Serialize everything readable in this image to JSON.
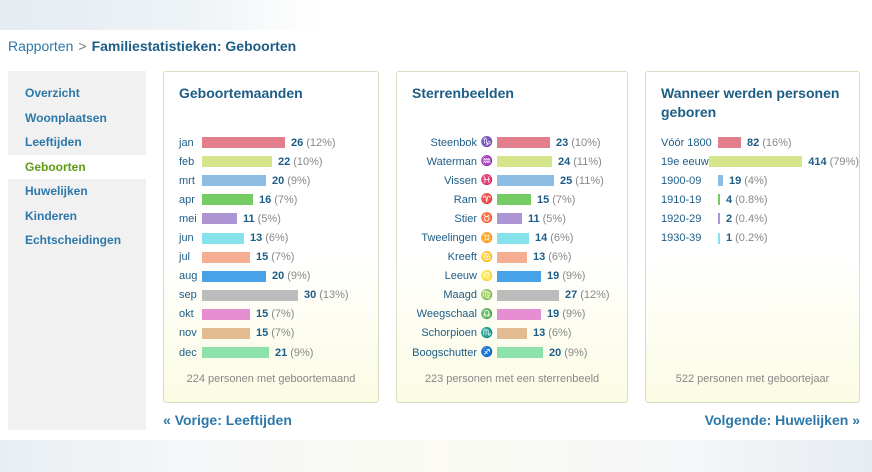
{
  "breadcrumb": {
    "root": "Rapporten",
    "separator": ">",
    "current": "Familiestatistieken: Geboorten"
  },
  "sidebar": {
    "items": [
      {
        "label": "Overzicht",
        "active": false
      },
      {
        "label": "Woonplaatsen",
        "active": false
      },
      {
        "label": "Leeftijden",
        "active": false
      },
      {
        "label": "Geboorten",
        "active": true
      },
      {
        "label": "Huwelijken",
        "active": false
      },
      {
        "label": "Kinderen",
        "active": false
      },
      {
        "label": "Echtscheidingen",
        "active": false
      }
    ]
  },
  "months": {
    "title": "Geboortemaanden",
    "footer": "224 personen met geboortemaand",
    "rows": [
      {
        "label": "jan",
        "value": 26,
        "pct": "(12%)",
        "color": "#e37f8d"
      },
      {
        "label": "feb",
        "value": 22,
        "pct": "(10%)",
        "color": "#d4e58a"
      },
      {
        "label": "mrt",
        "value": 20,
        "pct": "(9%)",
        "color": "#8dbde3"
      },
      {
        "label": "apr",
        "value": 16,
        "pct": "(7%)",
        "color": "#74cc63"
      },
      {
        "label": "mei",
        "value": 11,
        "pct": "(5%)",
        "color": "#ad94d2"
      },
      {
        "label": "jun",
        "value": 13,
        "pct": "(6%)",
        "color": "#86e2ea"
      },
      {
        "label": "jul",
        "value": 15,
        "pct": "(7%)",
        "color": "#f6ad91"
      },
      {
        "label": "aug",
        "value": 20,
        "pct": "(9%)",
        "color": "#47a2e8"
      },
      {
        "label": "sep",
        "value": 30,
        "pct": "(13%)",
        "color": "#bcbcbc"
      },
      {
        "label": "okt",
        "value": 15,
        "pct": "(7%)",
        "color": "#e68ed1"
      },
      {
        "label": "nov",
        "value": 15,
        "pct": "(7%)",
        "color": "#e2bb91"
      },
      {
        "label": "dec",
        "value": 21,
        "pct": "(9%)",
        "color": "#8de2ac"
      }
    ]
  },
  "zodiac": {
    "title": "Sterrenbeelden",
    "footer": "223 personen met een sterrenbeeld",
    "rows": [
      {
        "label": "Steenbok",
        "icon": "capricorn-icon",
        "value": 23,
        "pct": "(10%)",
        "color": "#e37f8d"
      },
      {
        "label": "Waterman",
        "icon": "aquarius-icon",
        "value": 24,
        "pct": "(11%)",
        "color": "#d4e58a"
      },
      {
        "label": "Vissen",
        "icon": "pisces-icon",
        "value": 25,
        "pct": "(11%)",
        "color": "#8dbde3"
      },
      {
        "label": "Ram",
        "icon": "aries-icon",
        "value": 15,
        "pct": "(7%)",
        "color": "#74cc63"
      },
      {
        "label": "Stier",
        "icon": "taurus-icon",
        "value": 11,
        "pct": "(5%)",
        "color": "#ad94d2"
      },
      {
        "label": "Tweelingen",
        "icon": "gemini-icon",
        "value": 14,
        "pct": "(6%)",
        "color": "#86e2ea"
      },
      {
        "label": "Kreeft",
        "icon": "cancer-icon",
        "value": 13,
        "pct": "(6%)",
        "color": "#f6ad91"
      },
      {
        "label": "Leeuw",
        "icon": "leo-icon",
        "value": 19,
        "pct": "(9%)",
        "color": "#47a2e8"
      },
      {
        "label": "Maagd",
        "icon": "virgo-icon",
        "value": 27,
        "pct": "(12%)",
        "color": "#bcbcbc"
      },
      {
        "label": "Weegschaal",
        "icon": "libra-icon",
        "value": 19,
        "pct": "(9%)",
        "color": "#e68ed1"
      },
      {
        "label": "Schorpioen",
        "icon": "scorpio-icon",
        "value": 13,
        "pct": "(6%)",
        "color": "#e2bb91"
      },
      {
        "label": "Boogschutter",
        "icon": "sagittarius-icon",
        "value": 20,
        "pct": "(9%)",
        "color": "#8de2ac"
      }
    ]
  },
  "periods": {
    "title": "Wanneer werden personen geboren",
    "footer": "522 personen met geboortejaar",
    "rows": [
      {
        "label": "Vóór 1800",
        "value": 82,
        "pct": "(16%)",
        "color": "#e37f8d"
      },
      {
        "label": "19e eeuw",
        "value": 414,
        "pct": "(79%)",
        "color": "#d4e58a"
      },
      {
        "label": "1900-09",
        "value": 19,
        "pct": "(4%)",
        "color": "#8dbde3"
      },
      {
        "label": "1910-19",
        "value": 4,
        "pct": "(0.8%)",
        "color": "#74cc63"
      },
      {
        "label": "1920-29",
        "value": 2,
        "pct": "(0.4%)",
        "color": "#ad94d2"
      },
      {
        "label": "1930-39",
        "value": 1,
        "pct": "(0.2%)",
        "color": "#86e2ea"
      }
    ]
  },
  "nav": {
    "prev_label": "Vorige: Leeftijden",
    "next_label": "Volgende: Huwelijken",
    "prev_chevron": "«",
    "next_chevron": "»"
  }
}
